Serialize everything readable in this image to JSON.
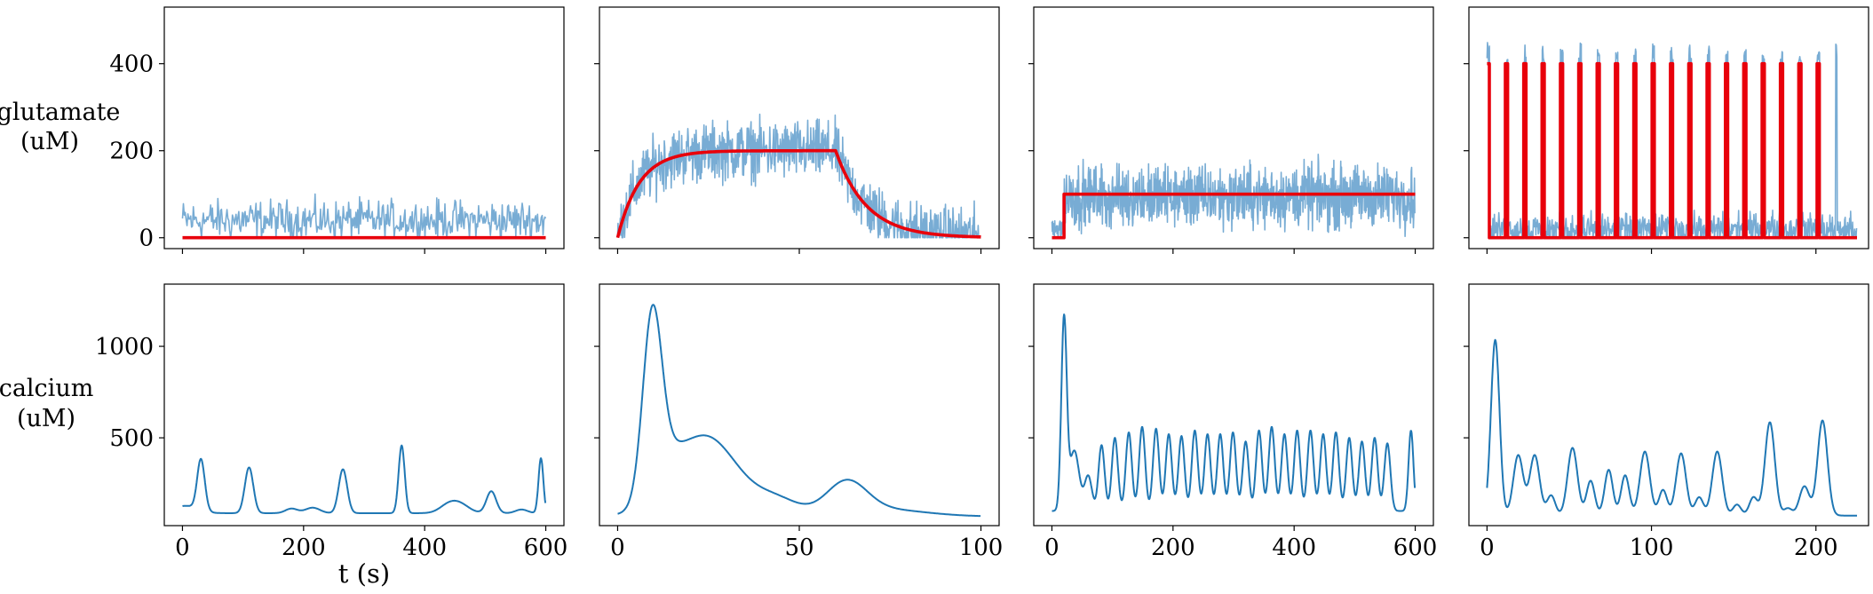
{
  "chart_data": {
    "layout": "2 rows x 4 columns of subplots; columns share x-axis, rows share y-axis",
    "row_labels": [
      {
        "line1": "glutamate",
        "line2": "(uM)"
      },
      {
        "line1": "calcium",
        "line2": "(uM)"
      }
    ],
    "xlabel": "t (s)",
    "row_yticks": [
      [
        0,
        200,
        400
      ],
      [
        500,
        1000
      ]
    ],
    "row_ylim": [
      [
        -25,
        530
      ],
      [
        20,
        1340
      ]
    ],
    "colors": {
      "noise": "#78acd4",
      "input": "#e8000b",
      "calcium": "#1f77b4"
    },
    "panels": [
      {
        "type": "line",
        "row": 0,
        "col": 0,
        "xlim": [
          -30,
          630
        ],
        "xticks": [
          0,
          200,
          400,
          600
        ],
        "series": [
          {
            "role": "noisy-glutamate",
            "pattern": "noise",
            "base": 40,
            "amp": 45,
            "step": 1.5,
            "t_end": 600
          },
          {
            "role": "glutamate-input",
            "kind": "constant",
            "points": [
              [
                0,
                0
              ],
              [
                600,
                0
              ]
            ]
          }
        ]
      },
      {
        "type": "line",
        "row": 0,
        "col": 1,
        "xlim": [
          -5,
          105
        ],
        "xticks": [
          0,
          50,
          100
        ],
        "series": [
          {
            "role": "noisy-glutamate",
            "pattern": "noise-envelope",
            "amp": 65,
            "step": 0.12,
            "t_end": 100
          },
          {
            "role": "glutamate-input",
            "kind": "rise-plateau-decay",
            "plateau": 200,
            "tau_rise": 6,
            "t_off": 60,
            "tau_decay": 8.5,
            "t_end": 100
          }
        ]
      },
      {
        "type": "line",
        "row": 0,
        "col": 2,
        "xlim": [
          -30,
          630
        ],
        "xticks": [
          0,
          200,
          400,
          600
        ],
        "series": [
          {
            "role": "noisy-glutamate",
            "pattern": "noise-step",
            "t_step": 20,
            "before": 0,
            "after": 95,
            "amp": 70,
            "step": 0.6,
            "t_end": 600
          },
          {
            "role": "glutamate-input",
            "kind": "step",
            "points": [
              [
                0,
                0
              ],
              [
                20,
                0
              ],
              [
                20,
                100
              ],
              [
                600,
                100
              ]
            ]
          }
        ]
      },
      {
        "type": "line",
        "row": 0,
        "col": 3,
        "xlim": [
          -11,
          232
        ],
        "xticks": [
          0,
          100,
          200
        ],
        "series": [
          {
            "role": "noisy-glutamate",
            "pattern": "noise-pulses",
            "base": 20,
            "amp": 35,
            "pulse_height": 420,
            "step": 0.3,
            "t_end": 225
          },
          {
            "role": "glutamate-input",
            "kind": "pulse-train",
            "period": 11.15,
            "width": 1.4,
            "n_pulses": 19,
            "height": 400,
            "t_end": 225
          }
        ]
      },
      {
        "type": "line",
        "row": 1,
        "col": 0,
        "xlim": [
          -30,
          630
        ],
        "xticks": [
          0,
          200,
          400,
          600
        ],
        "series": [
          {
            "role": "calcium",
            "base": 88,
            "t_end": 600,
            "peaks": [
              [
                5,
                20,
                40
              ],
              [
                30,
                6,
                250
              ],
              [
                35,
                6,
                40
              ],
              [
                110,
                7,
                250
              ],
              [
                180,
                10,
                25
              ],
              [
                215,
                12,
                30
              ],
              [
                265,
                7,
                240
              ],
              [
                362,
                5,
                370
              ],
              [
                440,
                15,
                45
              ],
              [
                460,
                15,
                40
              ],
              [
                510,
                8,
                120
              ],
              [
                560,
                10,
                20
              ],
              [
                592,
                4,
                300
              ]
            ]
          }
        ]
      },
      {
        "type": "line",
        "row": 1,
        "col": 1,
        "xlim": [
          -5,
          105
        ],
        "xticks": [
          0,
          50,
          100
        ],
        "series": [
          {
            "role": "calcium",
            "base": 70,
            "t_end": 100,
            "peaks": [
              [
                9.5,
                2.6,
                950
              ],
              [
                13,
                4,
                120
              ],
              [
                24,
                9,
                440
              ],
              [
                44,
                6,
                80
              ],
              [
                63,
                5.5,
                170
              ],
              [
                72,
                12,
                40
              ]
            ]
          }
        ]
      },
      {
        "type": "line",
        "row": 1,
        "col": 2,
        "xlim": [
          -30,
          630
        ],
        "xticks": [
          0,
          200,
          400,
          600
        ],
        "series": [
          {
            "role": "calcium",
            "base": 100,
            "t_end": 600,
            "peaks": [
              [
                20,
                4.5,
                1040
              ],
              [
                37,
                8,
                330
              ],
              [
                60,
                6,
                190
              ],
              [
                82,
                5,
                360
              ],
              [
                104,
                5,
                400
              ],
              [
                127,
                5,
                430
              ],
              [
                149,
                5,
                460
              ],
              [
                172,
                5,
                450
              ],
              [
                193,
                5,
                420
              ],
              [
                214,
                5,
                410
              ],
              [
                236,
                5,
                440
              ],
              [
                257,
                5,
                420
              ],
              [
                278,
                5,
                420
              ],
              [
                299,
                5,
                430
              ],
              [
                320,
                5,
                380
              ],
              [
                342,
                5,
                440
              ],
              [
                363,
                5,
                460
              ],
              [
                384,
                5,
                420
              ],
              [
                405,
                5,
                440
              ],
              [
                427,
                5,
                440
              ],
              [
                448,
                5,
                420
              ],
              [
                469,
                5,
                430
              ],
              [
                491,
                5,
                400
              ],
              [
                512,
                5,
                380
              ],
              [
                533,
                5,
                400
              ],
              [
                554,
                5,
                370
              ],
              [
                593,
                4,
                440
              ]
            ]
          }
        ]
      },
      {
        "type": "line",
        "row": 1,
        "col": 3,
        "xlim": [
          -11,
          232
        ],
        "xticks": [
          0,
          100,
          200
        ],
        "series": [
          {
            "role": "calcium",
            "base": 75,
            "t_end": 225,
            "peaks": [
              [
                5,
                2.6,
                960
              ],
              [
                19,
                3,
                330
              ],
              [
                29,
                3,
                330
              ],
              [
                39,
                2.5,
                110
              ],
              [
                52,
                3,
                370
              ],
              [
                63,
                2.5,
                190
              ],
              [
                74,
                2.5,
                250
              ],
              [
                84,
                2.5,
                220
              ],
              [
                96,
                3,
                350
              ],
              [
                107,
                2.5,
                140
              ],
              [
                118,
                3,
                340
              ],
              [
                129,
                2.5,
                100
              ],
              [
                140,
                3,
                350
              ],
              [
                152,
                2.5,
                60
              ],
              [
                162,
                2.5,
                100
              ],
              [
                172,
                3,
                510
              ],
              [
                183,
                2.5,
                40
              ],
              [
                193,
                3,
                160
              ],
              [
                204,
                3,
                520
              ]
            ]
          }
        ]
      }
    ]
  }
}
